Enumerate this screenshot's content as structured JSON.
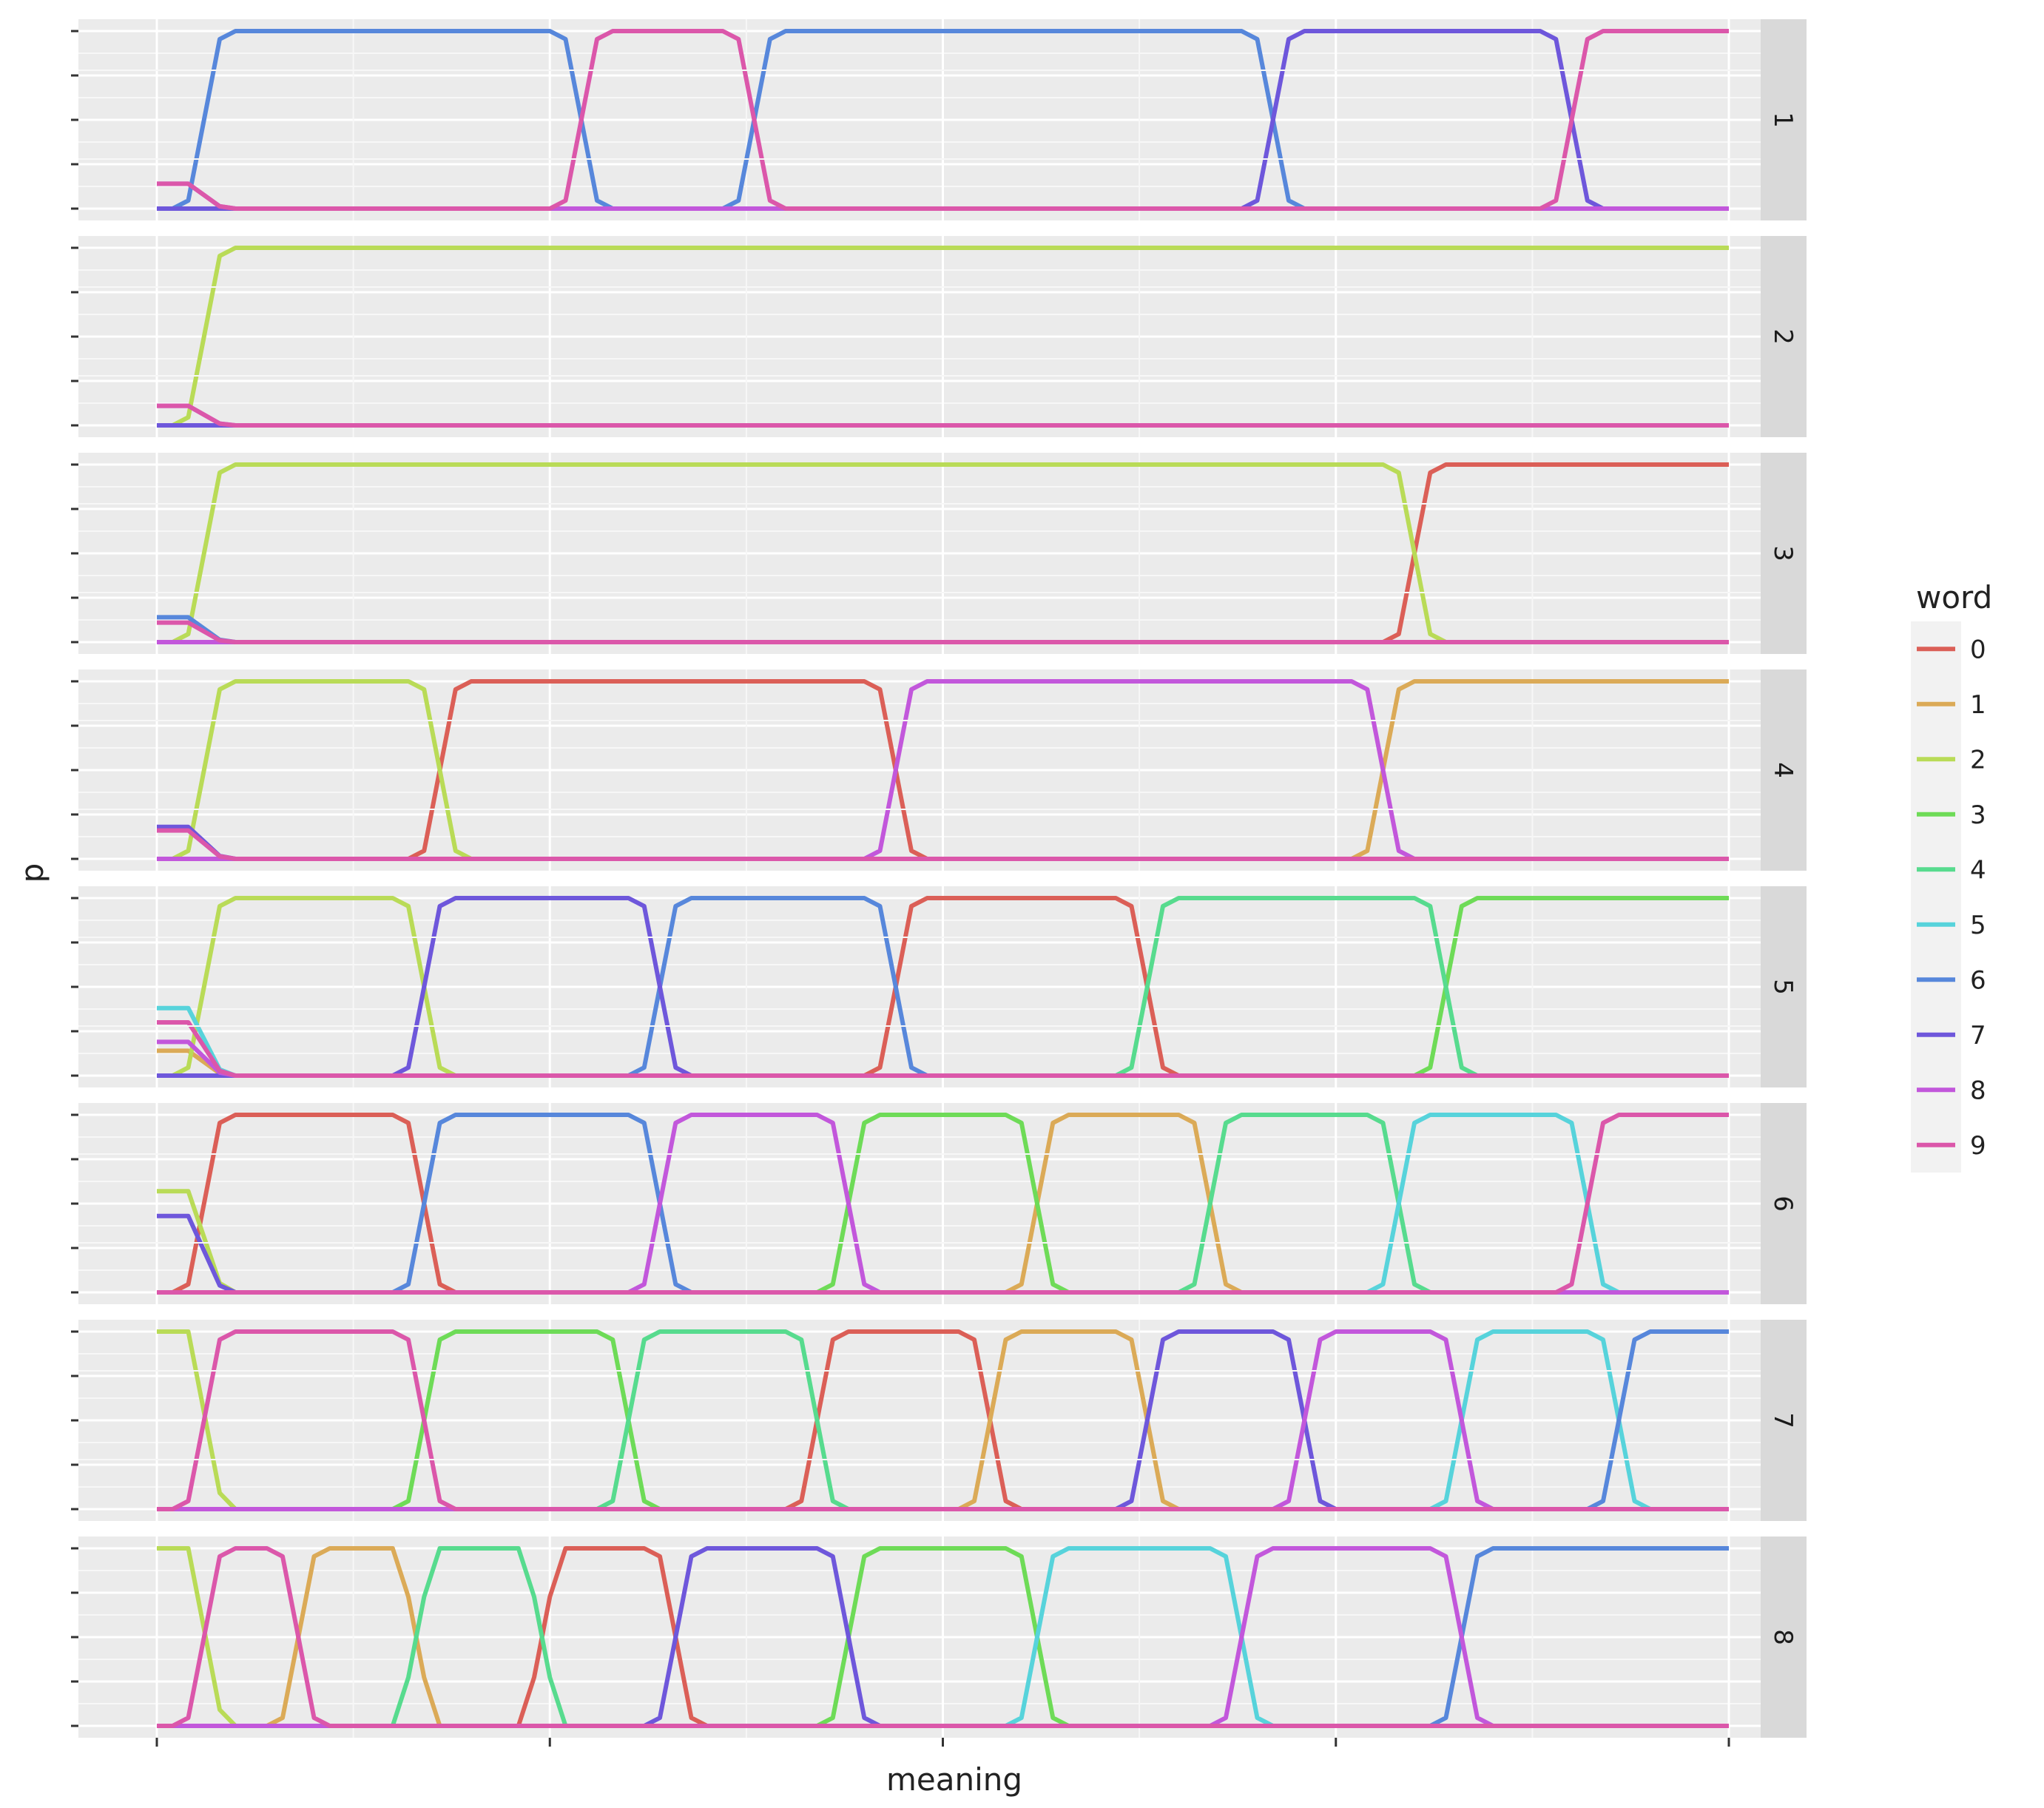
{
  "chart_data": {
    "type": "line",
    "xlabel": "meaning",
    "ylabel": "p",
    "xlim": [
      0,
      1
    ],
    "ylim": [
      0,
      1
    ],
    "grid": true,
    "x_tick_labels_shown": false,
    "y_tick_labels_shown": false,
    "legend": {
      "title": "word",
      "placement": "right"
    },
    "colors": {
      "0": "#db5f57",
      "1": "#dbaa57",
      "2": "#b9db57",
      "3": "#6edb57",
      "4": "#57db8e",
      "5": "#57d3db",
      "6": "#5787db",
      "7": "#6e57db",
      "8": "#c257db",
      "9": "#db57aa"
    },
    "words": [
      "0",
      "1",
      "2",
      "3",
      "4",
      "5",
      "6",
      "7",
      "8",
      "9"
    ],
    "panels": [
      {
        "strip": "1",
        "initial": {
          "8": 0.14,
          "9": 0.14
        },
        "segments": [
          {
            "word": "6",
            "start": 0.0,
            "end": 0.27
          },
          {
            "word": "9",
            "start": 0.27,
            "end": 0.38
          },
          {
            "word": "6",
            "start": 0.38,
            "end": 0.71
          },
          {
            "word": "7",
            "start": 0.71,
            "end": 0.9
          },
          {
            "word": "9",
            "start": 0.9,
            "end": 1.0
          }
        ]
      },
      {
        "strip": "2",
        "initial": {
          "8": 0.11,
          "9": 0.11,
          "2": 0.0
        },
        "segments": [
          {
            "word": "2",
            "start": 0.0,
            "end": 1.0
          }
        ]
      },
      {
        "strip": "3",
        "initial": {
          "6": 0.14,
          "9": 0.11
        },
        "segments": [
          {
            "word": "2",
            "start": 0.0,
            "end": 0.8
          },
          {
            "word": "0",
            "start": 0.8,
            "end": 1.0
          }
        ]
      },
      {
        "strip": "4",
        "initial": {
          "7": 0.18,
          "9": 0.16
        },
        "segments": [
          {
            "word": "2",
            "start": 0.0,
            "end": 0.18
          },
          {
            "word": "0",
            "start": 0.18,
            "end": 0.47
          },
          {
            "word": "8",
            "start": 0.47,
            "end": 0.78
          },
          {
            "word": "1",
            "start": 0.78,
            "end": 1.0
          }
        ]
      },
      {
        "strip": "5",
        "initial": {
          "5": 0.38,
          "9": 0.3,
          "8": 0.19,
          "1": 0.14
        },
        "segments": [
          {
            "word": "2",
            "start": 0.0,
            "end": 0.17
          },
          {
            "word": "7",
            "start": 0.17,
            "end": 0.32
          },
          {
            "word": "6",
            "start": 0.32,
            "end": 0.47
          },
          {
            "word": "0",
            "start": 0.47,
            "end": 0.63
          },
          {
            "word": "4",
            "start": 0.63,
            "end": 0.82
          },
          {
            "word": "3",
            "start": 0.82,
            "end": 1.0
          }
        ]
      },
      {
        "strip": "6",
        "initial": {
          "2": 0.57,
          "7": 0.43
        },
        "segments": [
          {
            "word": "0",
            "start": 0.0,
            "end": 0.17
          },
          {
            "word": "6",
            "start": 0.17,
            "end": 0.32
          },
          {
            "word": "8",
            "start": 0.32,
            "end": 0.44
          },
          {
            "word": "3",
            "start": 0.44,
            "end": 0.56
          },
          {
            "word": "1",
            "start": 0.56,
            "end": 0.67
          },
          {
            "word": "4",
            "start": 0.67,
            "end": 0.79
          },
          {
            "word": "5",
            "start": 0.79,
            "end": 0.91
          },
          {
            "word": "9",
            "start": 0.91,
            "end": 1.0
          }
        ]
      },
      {
        "strip": "7",
        "initial": {
          "2": 1.0
        },
        "segments": [
          {
            "word": "9",
            "start": 0.03,
            "end": 0.17
          },
          {
            "word": "3",
            "start": 0.17,
            "end": 0.3
          },
          {
            "word": "4",
            "start": 0.3,
            "end": 0.42
          },
          {
            "word": "0",
            "start": 0.42,
            "end": 0.53
          },
          {
            "word": "1",
            "start": 0.53,
            "end": 0.63
          },
          {
            "word": "7",
            "start": 0.63,
            "end": 0.73
          },
          {
            "word": "8",
            "start": 0.73,
            "end": 0.83
          },
          {
            "word": "5",
            "start": 0.83,
            "end": 0.93
          },
          {
            "word": "6",
            "start": 0.93,
            "end": 1.0
          }
        ]
      },
      {
        "strip": "8",
        "initial": {
          "2": 1.0
        },
        "segments": [
          {
            "word": "9",
            "start": 0.03,
            "end": 0.09
          },
          {
            "word": "1",
            "start": 0.09,
            "end": 0.165
          },
          {
            "word": "4",
            "start": 0.165,
            "end": 0.245
          },
          {
            "word": "0",
            "start": 0.245,
            "end": 0.33
          },
          {
            "word": "7",
            "start": 0.33,
            "end": 0.44
          },
          {
            "word": "3",
            "start": 0.44,
            "end": 0.56
          },
          {
            "word": "5",
            "start": 0.56,
            "end": 0.69
          },
          {
            "word": "8",
            "start": 0.69,
            "end": 0.83
          },
          {
            "word": "6",
            "start": 0.83,
            "end": 1.0
          }
        ]
      }
    ]
  }
}
